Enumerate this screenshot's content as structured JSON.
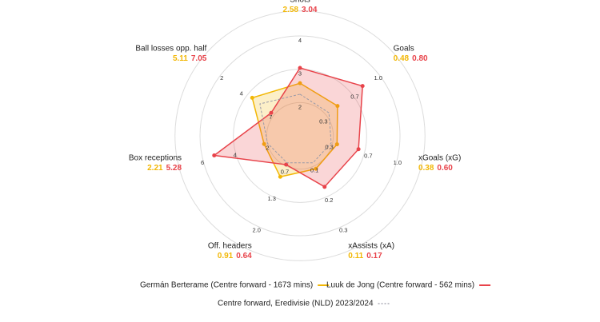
{
  "chart_data": {
    "type": "radar",
    "axes": [
      {
        "name": "Shots",
        "lim": [
          1,
          4
        ],
        "ticks": [
          2,
          3,
          4
        ]
      },
      {
        "name": "Goals",
        "lim": [
          0,
          1
        ],
        "ticks": [
          0.3,
          0.7,
          {
            "value": 1,
            "label": "1.0"
          }
        ]
      },
      {
        "name": "xGoals (xG)",
        "lim": [
          0,
          1
        ],
        "ticks": [
          0.3,
          0.7,
          {
            "value": 1,
            "label": "1.0"
          }
        ]
      },
      {
        "name": "xAssists (xA)",
        "lim": [
          0,
          0.3
        ],
        "ticks": [
          0.1,
          0.2,
          0.3
        ]
      },
      {
        "name": "Off. headers",
        "lim": [
          0,
          2
        ],
        "ticks": [
          0.7,
          1.3,
          {
            "value": 2,
            "label": "2.0"
          }
        ]
      },
      {
        "name": "Box receptions",
        "lim": [
          0,
          6
        ],
        "ticks": [
          2,
          4,
          6
        ]
      },
      {
        "name": "Ball losses opp. half",
        "lim": [
          10,
          2
        ],
        "ticks": [
          7,
          4,
          2
        ]
      }
    ],
    "series": [
      {
        "name": "Germán Berterame (Centre forward - 1673 mins)",
        "color": "#f2b705",
        "values": [
          2.58,
          0.48,
          0.38,
          0.11,
          0.91,
          2.21,
          5.11
        ],
        "value_labels": [
          "2.58",
          "0.48",
          "0.38",
          "0.11",
          "0.91",
          "2.21",
          "5.11"
        ]
      },
      {
        "name": "Luuk de Jong (Centre forward - 562 mins)",
        "color": "#e8434a",
        "values": [
          3.04,
          0.8,
          0.6,
          0.17,
          0.64,
          5.28,
          7.05
        ],
        "value_labels": [
          "3.04",
          "0.80",
          "0.60",
          "0.17",
          "0.64",
          "5.28",
          "7.05"
        ]
      },
      {
        "name": "Centre forward, Eredivisie (NLD) 2023/2024",
        "color": "#9a9aa8",
        "dashed": true,
        "values": [
          2.25,
          0.37,
          0.32,
          0.09,
          0.6,
          2.0,
          5.9
        ]
      }
    ]
  }
}
